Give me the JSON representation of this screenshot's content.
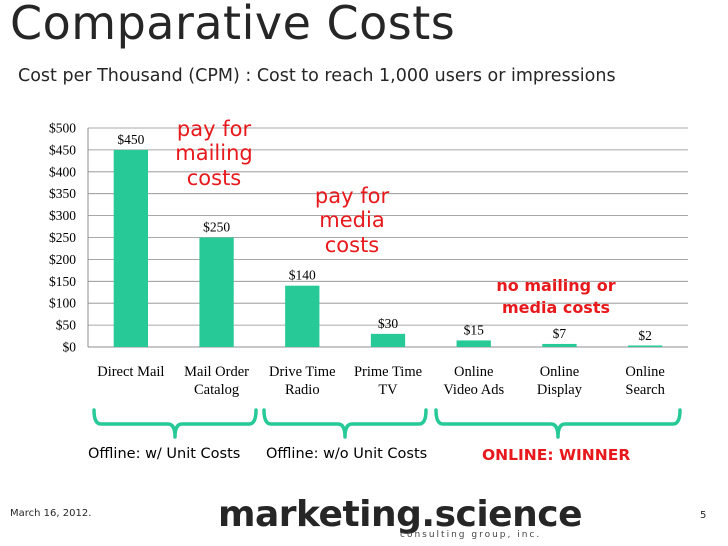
{
  "title": "Comparative Costs",
  "subtitle": "Cost per Thousand (CPM) : Cost to reach 1,000 users or impressions",
  "chart_data": {
    "type": "bar",
    "categories": [
      [
        "Direct Mail"
      ],
      [
        "Mail Order",
        "Catalog"
      ],
      [
        "Drive Time",
        "Radio"
      ],
      [
        "Prime Time",
        "TV"
      ],
      [
        "Online",
        "Video Ads"
      ],
      [
        "Online",
        "Display"
      ],
      [
        "Online",
        "Search"
      ]
    ],
    "values": [
      450,
      250,
      140,
      30,
      15,
      7,
      2
    ],
    "data_labels": [
      "$450",
      "$250",
      "$140",
      "$30",
      "$15",
      "$7",
      "$2"
    ],
    "y_ticks": [
      "$0",
      "$50",
      "$100",
      "$150",
      "$200",
      "$250",
      "$300",
      "$350",
      "$400",
      "$450",
      "$500"
    ],
    "ylim": [
      0,
      500
    ],
    "grid": true,
    "bar_color": "#27c997"
  },
  "annotations": {
    "mailing": [
      "pay for",
      "mailing",
      "costs"
    ],
    "media": [
      "pay for",
      "media",
      "costs"
    ],
    "online": [
      "no mailing or",
      "media costs"
    ]
  },
  "groups": {
    "offline_unit": "Offline: w/ Unit Costs",
    "offline_no_unit": "Offline: w/o Unit Costs",
    "online": "ONLINE: WINNER"
  },
  "brace_color": "#27c997",
  "footer": {
    "date": "March 16, 2012.",
    "logo": "marketing.science",
    "tagline": "consulting group, inc.",
    "page": "5"
  }
}
